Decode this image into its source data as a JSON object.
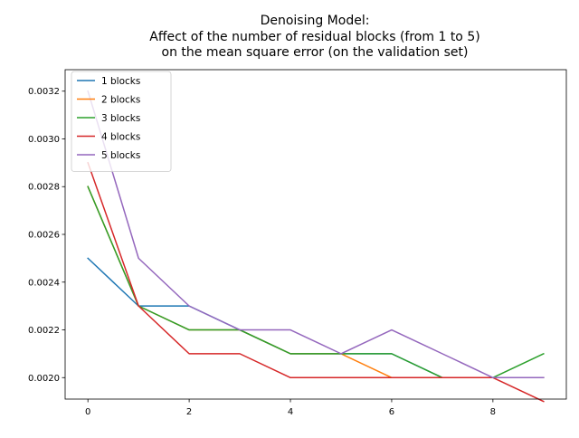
{
  "chart_data": {
    "type": "line",
    "title_lines": [
      "Denoising Model:",
      "Affect of the number of residual blocks (from 1 to 5)",
      "on the mean square error (on the validation set)"
    ],
    "xlabel": "",
    "ylabel": "",
    "xlim": [
      -0.45,
      9.45
    ],
    "ylim": [
      0.00191,
      0.00329
    ],
    "x_ticks": [
      0,
      2,
      4,
      6,
      8
    ],
    "y_ticks": [
      0.002,
      0.0022,
      0.0024,
      0.0026,
      0.0028,
      0.003,
      0.0032
    ],
    "y_tick_labels": [
      "0.0020",
      "0.0022",
      "0.0024",
      "0.0026",
      "0.0028",
      "0.0030",
      "0.0032"
    ],
    "x": [
      0,
      1,
      2,
      3,
      4,
      5,
      6,
      7,
      8,
      9
    ],
    "grid": false,
    "legend_position": "top-left",
    "series": [
      {
        "name": "1 blocks",
        "color": "#1f77b4",
        "values": [
          0.0025,
          0.0023,
          0.0023,
          0.0022,
          0.0021,
          0.0021,
          0.0021,
          0.002,
          0.002,
          0.002
        ]
      },
      {
        "name": "2 blocks",
        "color": "#ff7f0e",
        "values": [
          0.0028,
          0.0023,
          0.0022,
          0.0022,
          0.0021,
          0.0021,
          0.002,
          0.002,
          0.002,
          0.002
        ]
      },
      {
        "name": "3 blocks",
        "color": "#2ca02c",
        "values": [
          0.0028,
          0.0023,
          0.0022,
          0.0022,
          0.0021,
          0.0021,
          0.0021,
          0.002,
          0.002,
          0.0021
        ]
      },
      {
        "name": "4 blocks",
        "color": "#d62728",
        "values": [
          0.0029,
          0.0023,
          0.0021,
          0.0021,
          0.002,
          0.002,
          0.002,
          0.002,
          0.002,
          0.0019
        ]
      },
      {
        "name": "5 blocks",
        "color": "#9467bd",
        "values": [
          0.0032,
          0.0025,
          0.0023,
          0.0022,
          0.0022,
          0.0021,
          0.0022,
          0.0021,
          0.002,
          0.002
        ]
      }
    ]
  }
}
